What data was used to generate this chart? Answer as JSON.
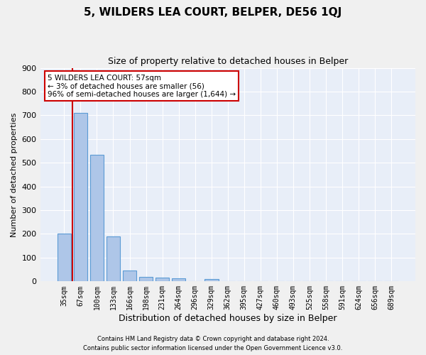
{
  "title": "5, WILDERS LEA COURT, BELPER, DE56 1QJ",
  "subtitle": "Size of property relative to detached houses in Belper",
  "xlabel": "Distribution of detached houses by size in Belper",
  "ylabel": "Number of detached properties",
  "footer_line1": "Contains HM Land Registry data © Crown copyright and database right 2024.",
  "footer_line2": "Contains public sector information licensed under the Open Government Licence v3.0.",
  "bin_labels": [
    "35sqm",
    "67sqm",
    "100sqm",
    "133sqm",
    "166sqm",
    "198sqm",
    "231sqm",
    "264sqm",
    "296sqm",
    "329sqm",
    "362sqm",
    "395sqm",
    "427sqm",
    "460sqm",
    "493sqm",
    "525sqm",
    "558sqm",
    "591sqm",
    "624sqm",
    "656sqm",
    "689sqm"
  ],
  "bar_heights": [
    200,
    710,
    535,
    190,
    47,
    18,
    15,
    12,
    0,
    10,
    0,
    0,
    0,
    0,
    0,
    0,
    0,
    0,
    0,
    0,
    0
  ],
  "bar_color": "#aec6e8",
  "bar_edge_color": "#5b9bd5",
  "background_color": "#e8eef8",
  "grid_color": "#ffffff",
  "vline_color": "#cc0000",
  "annotation_text": "5 WILDERS LEA COURT: 57sqm\n← 3% of detached houses are smaller (56)\n96% of semi-detached houses are larger (1,644) →",
  "annotation_box_color": "#ffffff",
  "annotation_box_edge": "#cc0000",
  "ylim": [
    0,
    900
  ],
  "yticks": [
    0,
    100,
    200,
    300,
    400,
    500,
    600,
    700,
    800,
    900
  ]
}
